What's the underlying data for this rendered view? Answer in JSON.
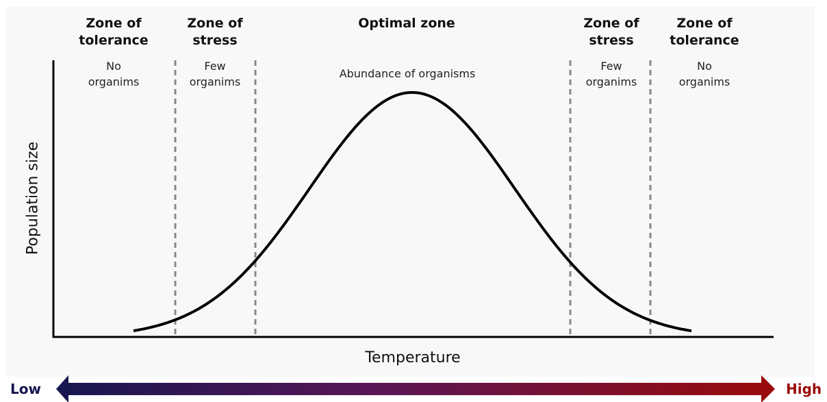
{
  "zones": [
    {
      "title": "Zone of tolerance",
      "description": "No organims"
    },
    {
      "title": "Zone of stress",
      "description": "Few organims"
    },
    {
      "title": "Optimal zone",
      "description": "Abundance of organisms"
    },
    {
      "title": "Zone of stress",
      "description": "Few organims"
    },
    {
      "title": "Zone of tolerance",
      "description": "No organims"
    }
  ],
  "y_axis_label": "Population size",
  "x_axis_label": "Temperature",
  "scale": {
    "low": "Low",
    "high": "High"
  }
}
